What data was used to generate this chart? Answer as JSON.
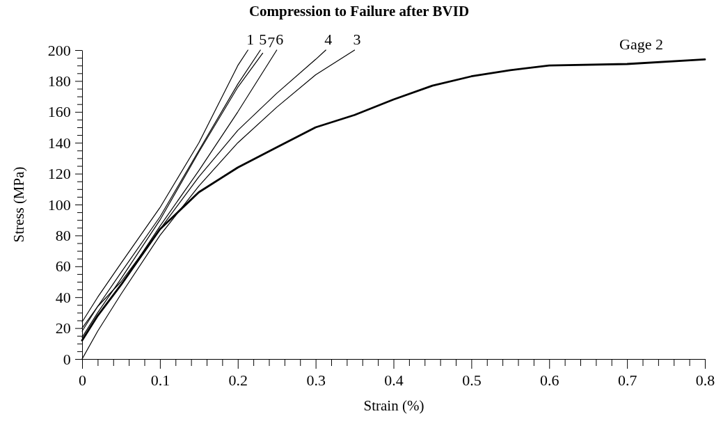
{
  "chart_data": {
    "type": "line",
    "title": "Compression to Failure after BVID",
    "xlabel": "Strain (%)",
    "ylabel": "Stress (MPa)",
    "xlim": [
      0,
      0.8
    ],
    "ylim": [
      0,
      200
    ],
    "xticks": [
      0,
      {
        "value": 0.02,
        "label": null
      },
      {
        "value": 0.04,
        "label": null
      },
      {
        "value": 0.06,
        "label": null
      },
      {
        "value": 0.08,
        "label": null
      },
      0.1,
      {
        "value": 0.12,
        "label": null
      },
      {
        "value": 0.14,
        "label": null
      },
      {
        "value": 0.16,
        "label": null
      },
      {
        "value": 0.18,
        "label": null
      },
      0.2,
      {
        "value": 0.22,
        "label": null
      },
      {
        "value": 0.24,
        "label": null
      },
      {
        "value": 0.26,
        "label": null
      },
      {
        "value": 0.28,
        "label": null
      },
      0.3,
      {
        "value": 0.32,
        "label": null
      },
      {
        "value": 0.34,
        "label": null
      },
      {
        "value": 0.36,
        "label": null
      },
      {
        "value": 0.38,
        "label": null
      },
      0.4,
      {
        "value": 0.42,
        "label": null
      },
      {
        "value": 0.44,
        "label": null
      },
      {
        "value": 0.46,
        "label": null
      },
      {
        "value": 0.48,
        "label": null
      },
      0.5,
      {
        "value": 0.52,
        "label": null
      },
      {
        "value": 0.54,
        "label": null
      },
      {
        "value": 0.56,
        "label": null
      },
      {
        "value": 0.58,
        "label": null
      },
      0.6,
      {
        "value": 0.62,
        "label": null
      },
      {
        "value": 0.64,
        "label": null
      },
      {
        "value": 0.66,
        "label": null
      },
      {
        "value": 0.68,
        "label": null
      },
      0.7,
      {
        "value": 0.72,
        "label": null
      },
      {
        "value": 0.74,
        "label": null
      },
      {
        "value": 0.76,
        "label": null
      },
      {
        "value": 0.78,
        "label": null
      },
      0.8
    ],
    "yticks": [
      0,
      {
        "value": 5,
        "label": null
      },
      {
        "value": 10,
        "label": null
      },
      {
        "value": 15,
        "label": null
      },
      20,
      {
        "value": 25,
        "label": null
      },
      {
        "value": 30,
        "label": null
      },
      {
        "value": 35,
        "label": null
      },
      40,
      {
        "value": 45,
        "label": null
      },
      {
        "value": 50,
        "label": null
      },
      {
        "value": 55,
        "label": null
      },
      60,
      {
        "value": 65,
        "label": null
      },
      {
        "value": 70,
        "label": null
      },
      {
        "value": 75,
        "label": null
      },
      80,
      {
        "value": 85,
        "label": null
      },
      {
        "value": 90,
        "label": null
      },
      {
        "value": 95,
        "label": null
      },
      100,
      {
        "value": 105,
        "label": null
      },
      {
        "value": 110,
        "label": null
      },
      {
        "value": 115,
        "label": null
      },
      120,
      {
        "value": 125,
        "label": null
      },
      {
        "value": 130,
        "label": null
      },
      {
        "value": 135,
        "label": null
      },
      140,
      {
        "value": 145,
        "label": null
      },
      {
        "value": 150,
        "label": null
      },
      {
        "value": 155,
        "label": null
      },
      160,
      {
        "value": 165,
        "label": null
      },
      {
        "value": 170,
        "label": null
      },
      {
        "value": 175,
        "label": null
      },
      180,
      {
        "value": 185,
        "label": null
      },
      {
        "value": 190,
        "label": null
      },
      {
        "value": 195,
        "label": null
      },
      200
    ],
    "grid": false,
    "marker": "none",
    "line_style": "solid",
    "series": [
      {
        "name": "1",
        "color": "#000000",
        "x": [
          0,
          0.02,
          0.05,
          0.1,
          0.15,
          0.2,
          0.213
        ],
        "values": [
          24,
          40,
          62,
          98,
          140,
          190,
          200
        ]
      },
      {
        "name": "5",
        "color": "#000000",
        "x": [
          0,
          0.02,
          0.05,
          0.1,
          0.15,
          0.2,
          0.229
        ],
        "values": [
          18,
          34,
          56,
          92,
          135,
          178,
          200
        ]
      },
      {
        "name": "7",
        "color": "#000000",
        "x": [
          0,
          0.02,
          0.05,
          0.1,
          0.15,
          0.2,
          0.232
        ],
        "values": [
          14,
          30,
          52,
          90,
          134,
          176,
          198
        ]
      },
      {
        "name": "6",
        "color": "#000000",
        "x": [
          0,
          0.02,
          0.05,
          0.1,
          0.15,
          0.2,
          0.25
        ],
        "values": [
          12,
          28,
          48,
          86,
          122,
          160,
          200
        ]
      },
      {
        "name": "4",
        "color": "#000000",
        "x": [
          0,
          0.02,
          0.05,
          0.1,
          0.15,
          0.2,
          0.25,
          0.3,
          0.313
        ],
        "values": [
          20,
          34,
          50,
          84,
          118,
          148,
          172,
          194,
          200
        ]
      },
      {
        "name": "3",
        "color": "#000000",
        "x": [
          0,
          0.02,
          0.05,
          0.1,
          0.15,
          0.2,
          0.25,
          0.3,
          0.35
        ],
        "values": [
          0,
          18,
          42,
          80,
          112,
          140,
          163,
          184,
          200
        ]
      },
      {
        "name": "Gage 2",
        "color": "#000000",
        "x": [
          0,
          0.02,
          0.05,
          0.1,
          0.15,
          0.2,
          0.25,
          0.3,
          0.35,
          0.4,
          0.45,
          0.5,
          0.55,
          0.6,
          0.7,
          0.8
        ],
        "values": [
          12,
          28,
          48,
          84,
          108,
          124,
          137,
          150,
          158,
          168,
          177,
          183,
          187,
          190,
          191,
          194
        ]
      }
    ]
  }
}
